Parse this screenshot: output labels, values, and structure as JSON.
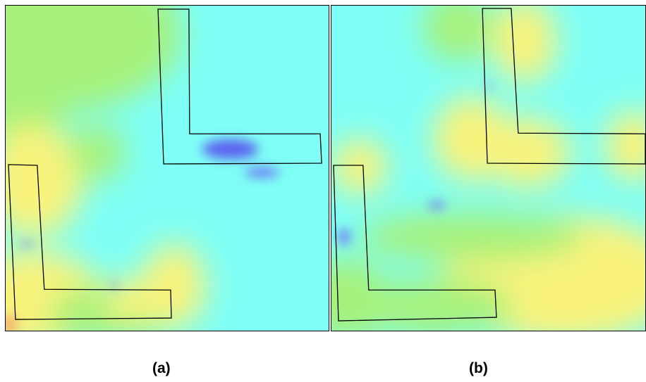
{
  "captions": {
    "a": "(a)",
    "b": "(b)"
  },
  "colors": {
    "cyan": "#7ffff6",
    "green": "#a6f17a",
    "yellow": "#f9f37c",
    "blue": "#5a5ef0",
    "orange": "#f2b06a",
    "outline": "#000000"
  }
}
